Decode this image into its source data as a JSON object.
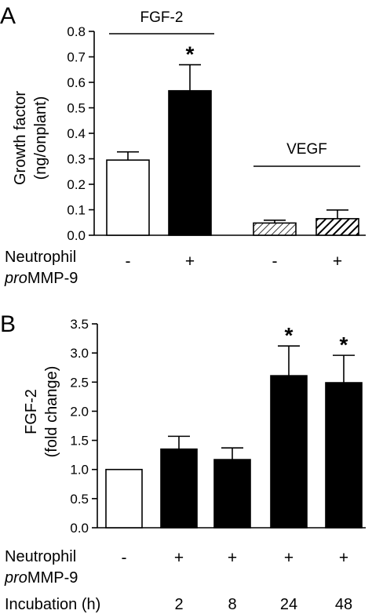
{
  "colors": {
    "ink": "#000000",
    "open_bar": "#ffffff",
    "filled_bar": "#000000"
  },
  "chart_data": [
    {
      "panel": "A",
      "type": "bar",
      "ylabel_lines": [
        "Growth factor",
        "(ng/onplant)"
      ],
      "ylim": [
        0,
        0.8
      ],
      "yticks": [
        "0.0",
        "0.1",
        "0.2",
        "0.3",
        "0.4",
        "0.5",
        "0.6",
        "0.7",
        "0.8"
      ],
      "groups": [
        "FGF-2",
        "VEGF"
      ],
      "bars": [
        {
          "group": "FGF-2",
          "treatment": "-",
          "value": 0.295,
          "error": 0.032,
          "fill": "open",
          "significant": false
        },
        {
          "group": "FGF-2",
          "treatment": "+",
          "value": 0.567,
          "error": 0.102,
          "fill": "solid",
          "significant": true
        },
        {
          "group": "VEGF",
          "treatment": "-",
          "value": 0.048,
          "error": 0.011,
          "fill": "hatched-light",
          "significant": false
        },
        {
          "group": "VEGF",
          "treatment": "+",
          "value": 0.065,
          "error": 0.034,
          "fill": "hatched-dark",
          "significant": false
        }
      ],
      "row_label_lines": [
        "Neutrophil",
        "pro",
        "MMP-9"
      ],
      "significance_marker": "*"
    },
    {
      "panel": "B",
      "type": "bar",
      "ylabel_lines": [
        "FGF-2",
        "(fold change)"
      ],
      "ylim": [
        0,
        3.5
      ],
      "yticks": [
        "0.0",
        "0.5",
        "1.0",
        "1.5",
        "2.0",
        "2.5",
        "3.0",
        "3.5"
      ],
      "bars": [
        {
          "treatment": "-",
          "incubation": "",
          "value": 1.0,
          "error": 0,
          "fill": "open",
          "significant": false
        },
        {
          "treatment": "+",
          "incubation": "2",
          "value": 1.35,
          "error": 0.22,
          "fill": "solid",
          "significant": false
        },
        {
          "treatment": "+",
          "incubation": "8",
          "value": 1.17,
          "error": 0.2,
          "fill": "solid",
          "significant": false
        },
        {
          "treatment": "+",
          "incubation": "24",
          "value": 2.61,
          "error": 0.51,
          "fill": "solid",
          "significant": true
        },
        {
          "treatment": "+",
          "incubation": "48",
          "value": 2.49,
          "error": 0.47,
          "fill": "solid",
          "significant": true
        }
      ],
      "row_label_lines": [
        "Neutrophil",
        "pro",
        "MMP-9"
      ],
      "incubation_label": "Incubation (h)",
      "significance_marker": "*"
    }
  ]
}
